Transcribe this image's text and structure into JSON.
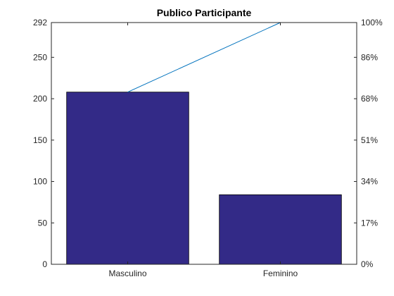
{
  "chart_data": {
    "type": "bar",
    "title": "Publico Participante",
    "categories": [
      "Masculino",
      "Feminino"
    ],
    "values": [
      208,
      84
    ],
    "ylim": [
      0,
      292
    ],
    "yticks": [
      0,
      50,
      100,
      150,
      200,
      250,
      292
    ],
    "y2ticks": [
      "0%",
      "17%",
      "34%",
      "51%",
      "68%",
      "86%",
      "100%"
    ],
    "cumulative": [
      208,
      292
    ],
    "grid": false,
    "bar_color": "#332a87",
    "line_color": "#0072bd"
  }
}
